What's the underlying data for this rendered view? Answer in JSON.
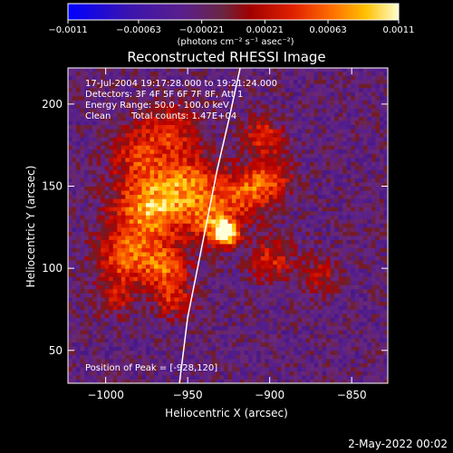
{
  "chart_data": {
    "type": "heatmap",
    "title": "Reconstructed RHESSI Image",
    "xlabel": "Heliocentric X (arcsec)",
    "ylabel": "Heliocentric Y (arcsec)",
    "xlim": [
      -1023,
      -828
    ],
    "ylim": [
      30,
      222
    ],
    "x_ticks": [
      -1000,
      -950,
      -900,
      -850
    ],
    "x_tick_labels": [
      "−1000",
      "−950",
      "−900",
      "−850"
    ],
    "y_ticks": [
      50,
      100,
      150,
      200
    ],
    "y_tick_labels": [
      "50",
      "100",
      "150",
      "200"
    ],
    "colorbar": {
      "min": -0.0011,
      "max": 0.0011,
      "ticks": [
        -0.0011,
        -0.00063,
        -0.00021,
        0.00021,
        0.00063,
        0.0011
      ],
      "tick_labels": [
        "−0.0011",
        "−0.00063",
        "−0.00021",
        "0.00021",
        "0.00063",
        "0.0011"
      ],
      "label": "(photons cm⁻² s⁻¹ asec⁻²)",
      "colors": [
        "#0000ff",
        "#5a1f8a",
        "#7a2a4a",
        "#c00000",
        "#ff4000",
        "#ffa000",
        "#ffff80",
        "#ffffff"
      ]
    },
    "annotations": {
      "time": "17-Jul-2004 19:17:28.000 to 19:21:24.000",
      "detectors": "Detectors: 3F 4F 5F 6F 7F 8F, Att 1",
      "energy": "Energy Range: 50.0 - 100.0 keV",
      "method": "Clean",
      "counts": "Total counts: 1.47E+04",
      "peak": "Position of Peak = [-928,120]"
    },
    "peak": {
      "x": -928,
      "y": 120
    },
    "sources": [
      {
        "x": -928,
        "y": 120,
        "amp": 1.0,
        "sigma": 5
      },
      {
        "x": -935,
        "y": 128,
        "amp": 0.55,
        "sigma": 10
      },
      {
        "x": -975,
        "y": 135,
        "amp": 0.75,
        "sigma": 15
      },
      {
        "x": -950,
        "y": 150,
        "amp": 0.6,
        "sigma": 14
      },
      {
        "x": -990,
        "y": 105,
        "amp": 0.55,
        "sigma": 12
      },
      {
        "x": -965,
        "y": 100,
        "amp": 0.55,
        "sigma": 10
      },
      {
        "x": -915,
        "y": 145,
        "amp": 0.55,
        "sigma": 10
      },
      {
        "x": -900,
        "y": 155,
        "amp": 0.45,
        "sigma": 9
      },
      {
        "x": -905,
        "y": 180,
        "amp": 0.45,
        "sigma": 8
      },
      {
        "x": -980,
        "y": 170,
        "amp": 0.45,
        "sigma": 12
      },
      {
        "x": -960,
        "y": 185,
        "amp": 0.4,
        "sigma": 10
      },
      {
        "x": -900,
        "y": 105,
        "amp": 0.4,
        "sigma": 10
      },
      {
        "x": -870,
        "y": 95,
        "amp": 0.3,
        "sigma": 8
      },
      {
        "x": -960,
        "y": 80,
        "amp": 0.4,
        "sigma": 8
      },
      {
        "x": -995,
        "y": 80,
        "amp": 0.3,
        "sigma": 8
      }
    ],
    "limb_curve": [
      [
        -918,
        222
      ],
      [
        -925,
        190
      ],
      [
        -932,
        160
      ],
      [
        -938,
        130
      ],
      [
        -944,
        100
      ],
      [
        -950,
        70
      ],
      [
        -955,
        30
      ]
    ]
  },
  "footer": {
    "date": "2-May-2022 00:02"
  }
}
